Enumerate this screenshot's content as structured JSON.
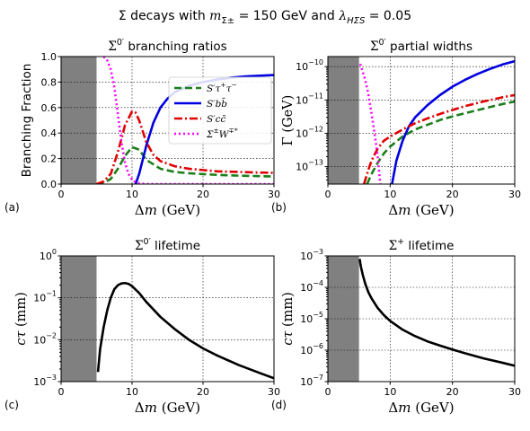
{
  "figure_title": "Σ decays with m_{Σ±} = 150 GeV and λ_{HΣS} = 0.05",
  "figure_title_parts": {
    "prefix": "Σ decays with ",
    "m_sym": "m",
    "m_sub": "Σ±",
    "mid": " = 150 GeV and ",
    "lam_sym": "λ",
    "lam_sub": "HΣS",
    "suffix": " = 0.05"
  },
  "chart_data": [
    {
      "id": "a",
      "type": "line",
      "panel_label": "(a)",
      "title": "Σ0′ branching ratios",
      "xlabel": "Δm (GeV)",
      "ylabel": "Branching Fraction",
      "xlim": [
        0,
        30
      ],
      "ylim": [
        0,
        1.0
      ],
      "yscale": "linear",
      "xticks": [
        0,
        10,
        20,
        30
      ],
      "xtick_labels": [
        "0",
        "10",
        "20",
        "30"
      ],
      "yticks": [
        0,
        0.2,
        0.4,
        0.6,
        0.8,
        1.0
      ],
      "ytick_labels": [
        "0.0",
        "0.2",
        "0.4",
        "0.6",
        "0.8",
        "1.0"
      ],
      "shaded_region_x": [
        0,
        5
      ],
      "grid": true,
      "legend_position": "center-right",
      "series": [
        {
          "name": "S′τ+τ−",
          "color": "#1a7f1a",
          "dash": "8 4",
          "x": [
            5,
            6,
            7,
            8,
            9,
            10,
            11,
            12,
            14,
            16,
            18,
            20,
            22,
            25,
            28,
            30
          ],
          "y": [
            0.0,
            0.01,
            0.04,
            0.12,
            0.22,
            0.29,
            0.27,
            0.19,
            0.12,
            0.095,
            0.085,
            0.078,
            0.072,
            0.066,
            0.062,
            0.06
          ]
        },
        {
          "name": "S′bb̄",
          "color": "#0000e0",
          "dash": "",
          "x": [
            10.5,
            11,
            12,
            13,
            14,
            15,
            16,
            18,
            20,
            22,
            24,
            26,
            28,
            30
          ],
          "y": [
            0.0,
            0.08,
            0.3,
            0.48,
            0.6,
            0.67,
            0.72,
            0.77,
            0.8,
            0.82,
            0.835,
            0.845,
            0.85,
            0.855
          ]
        },
        {
          "name": "S′cc̄",
          "color": "#e00000",
          "dash": "9 3 2 3",
          "x": [
            5,
            6,
            7,
            8,
            9,
            10,
            10.5,
            11,
            12,
            13,
            14,
            16,
            18,
            20,
            22,
            25,
            28,
            30
          ],
          "y": [
            0.0,
            0.02,
            0.08,
            0.25,
            0.46,
            0.57,
            0.56,
            0.5,
            0.33,
            0.23,
            0.18,
            0.14,
            0.12,
            0.11,
            0.1,
            0.095,
            0.09,
            0.088
          ]
        },
        {
          "name": "Σ±W∓*",
          "color": "#ff00ff",
          "dash": "2 3",
          "x": [
            6,
            6.5,
            7,
            7.5,
            8,
            8.5,
            9,
            9.5,
            10,
            10.5,
            11,
            12,
            14,
            20,
            30
          ],
          "y": [
            1.0,
            0.97,
            0.9,
            0.76,
            0.55,
            0.33,
            0.17,
            0.08,
            0.035,
            0.015,
            0.006,
            0.0,
            0.0,
            0.0,
            0.0
          ]
        }
      ]
    },
    {
      "id": "b",
      "type": "line",
      "panel_label": "(b)",
      "title": "Σ0′ partial widths",
      "xlabel": "Δm (GeV)",
      "ylabel": "Γ (GeV)",
      "xlim": [
        0,
        30
      ],
      "ylim": [
        3e-14,
        2e-10
      ],
      "yscale": "log",
      "xticks": [
        0,
        10,
        20,
        30
      ],
      "xtick_labels": [
        "0",
        "10",
        "20",
        "30"
      ],
      "yticks": [
        1e-13,
        1e-12,
        1e-11,
        1e-10
      ],
      "ytick_labels": [
        [
          "10",
          "−13"
        ],
        [
          "10",
          "−12"
        ],
        [
          "10",
          "−11"
        ],
        [
          "10",
          "−10"
        ]
      ],
      "shaded_region_x": [
        0,
        5
      ],
      "grid": true,
      "series": [
        {
          "name": "S′τ+τ−",
          "color": "#1a7f1a",
          "dash": "8 4",
          "x": [
            6.3,
            7,
            8,
            9,
            10,
            12,
            14,
            16,
            18,
            20,
            22,
            25,
            28,
            30
          ],
          "y": [
            3e-14,
            6e-14,
            1.3e-13,
            2.5e-13,
            4e-13,
            8e-13,
            1.3e-12,
            1.8e-12,
            2.5e-12,
            3.2e-12,
            4e-12,
            5.5e-12,
            7.5e-12,
            9e-12
          ]
        },
        {
          "name": "S′bb̄",
          "color": "#0000e0",
          "dash": "",
          "x": [
            10.3,
            10.6,
            11,
            12,
            13,
            14,
            16,
            18,
            20,
            22,
            24,
            26,
            28,
            30
          ],
          "y": [
            3e-14,
            6e-14,
            1.5e-13,
            6e-13,
            1.6e-12,
            3e-12,
            7e-12,
            1.4e-11,
            2.5e-11,
            4e-11,
            6e-11,
            8.5e-11,
            1.15e-10,
            1.45e-10
          ]
        },
        {
          "name": "S′cc̄",
          "color": "#e00000",
          "dash": "9 3 2 3",
          "x": [
            5.8,
            6.5,
            7,
            8,
            9,
            10,
            12,
            14,
            16,
            18,
            20,
            22,
            25,
            28,
            30
          ],
          "y": [
            3e-14,
            8e-14,
            1.5e-13,
            3.5e-13,
            6e-13,
            8e-13,
            1.3e-12,
            2e-12,
            2.8e-12,
            3.8e-12,
            5e-12,
            6.5e-12,
            9e-12,
            1.2e-11,
            1.4e-11
          ]
        },
        {
          "name": "Σ±W∓*",
          "color": "#ff00ff",
          "dash": "2 3",
          "x": [
            5.2,
            5.5,
            6,
            6.5,
            7,
            7.5,
            8,
            8.4
          ],
          "y": [
            1.2e-10,
            8e-11,
            4e-11,
            1.5e-11,
            4e-12,
            1e-12,
            2e-13,
            3e-14
          ]
        }
      ]
    },
    {
      "id": "c",
      "type": "line",
      "panel_label": "(c)",
      "title": "Σ0′ lifetime",
      "xlabel": "Δm (GeV)",
      "ylabel": "cτ (mm)",
      "xlim": [
        0,
        30
      ],
      "ylim": [
        0.001,
        1
      ],
      "yscale": "log",
      "xticks": [
        0,
        10,
        20,
        30
      ],
      "xtick_labels": [
        "0",
        "10",
        "20",
        "30"
      ],
      "yticks": [
        0.001,
        0.01,
        0.1,
        1
      ],
      "ytick_labels": [
        [
          "10",
          "−3"
        ],
        [
          "10",
          "−2"
        ],
        [
          "10",
          "−1"
        ],
        [
          "10",
          "0"
        ]
      ],
      "shaded_region_x": [
        0,
        5
      ],
      "grid": true,
      "series": [
        {
          "name": "",
          "color": "#000000",
          "dash": "",
          "x": [
            5.2,
            5.5,
            6,
            6.5,
            7,
            7.5,
            8,
            8.5,
            9,
            9.5,
            10,
            11,
            12,
            14,
            16,
            18,
            20,
            22,
            25,
            28,
            30
          ],
          "y": [
            0.0017,
            0.006,
            0.02,
            0.05,
            0.1,
            0.16,
            0.2,
            0.22,
            0.225,
            0.215,
            0.19,
            0.13,
            0.08,
            0.035,
            0.018,
            0.01,
            0.0062,
            0.0042,
            0.0025,
            0.0016,
            0.0012
          ]
        }
      ]
    },
    {
      "id": "d",
      "type": "line",
      "panel_label": "(d)",
      "title": "Σ+ lifetime",
      "xlabel": "Δm (GeV)",
      "ylabel": "cτ (mm)",
      "xlim": [
        0,
        30
      ],
      "ylim": [
        1e-07,
        0.001
      ],
      "yscale": "log",
      "xticks": [
        0,
        10,
        20,
        30
      ],
      "xtick_labels": [
        "0",
        "10",
        "20",
        "30"
      ],
      "yticks": [
        1e-07,
        1e-06,
        1e-05,
        0.0001,
        0.001
      ],
      "ytick_labels": [
        [
          "10",
          "−7"
        ],
        [
          "10",
          "−6"
        ],
        [
          "10",
          "−5"
        ],
        [
          "10",
          "−4"
        ],
        [
          "10",
          "−3"
        ]
      ],
      "shaded_region_x": [
        0,
        5
      ],
      "grid": true,
      "series": [
        {
          "name": "",
          "color": "#000000",
          "dash": "",
          "x": [
            5.1,
            5.3,
            5.6,
            6,
            6.5,
            7,
            8,
            9,
            10,
            12,
            14,
            16,
            18,
            20,
            22,
            25,
            28,
            30
          ],
          "y": [
            0.0008,
            0.00045,
            0.00025,
            0.00013,
            7e-05,
            4.5e-05,
            2.2e-05,
            1.3e-05,
            8.5e-06,
            4.5e-06,
            2.8e-06,
            1.9e-06,
            1.4e-06,
            1.05e-06,
            8e-07,
            5.5e-07,
            4e-07,
            3.2e-07
          ]
        }
      ]
    }
  ]
}
